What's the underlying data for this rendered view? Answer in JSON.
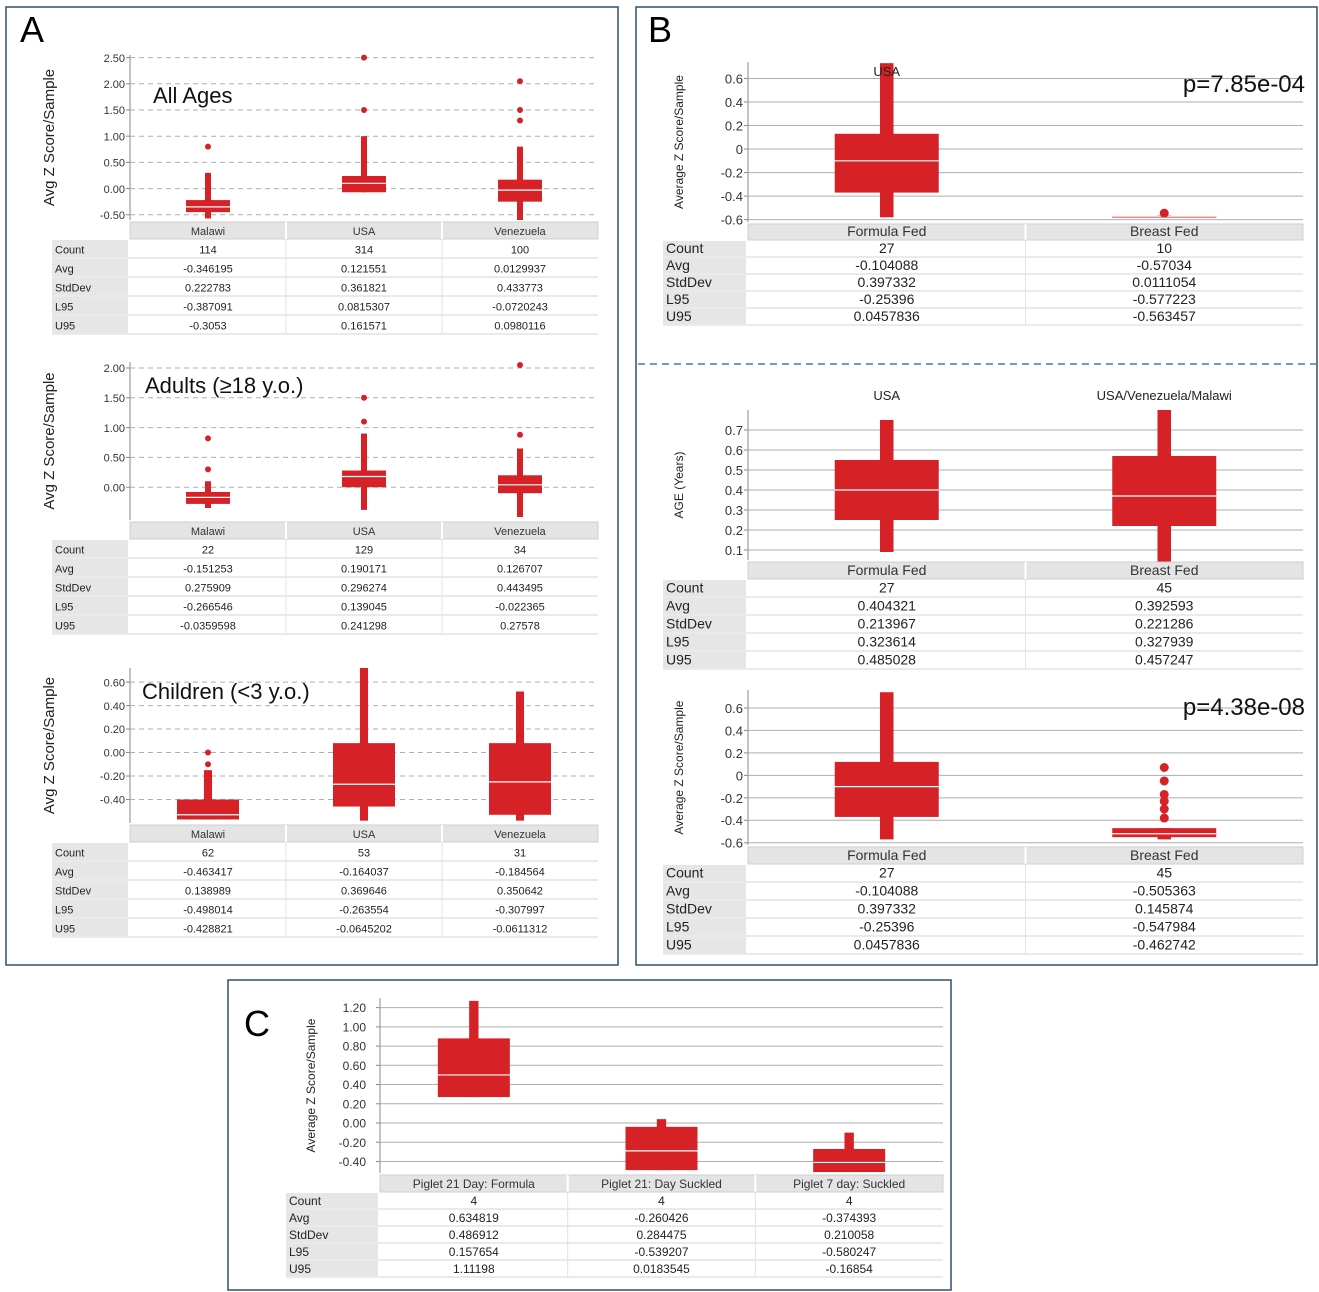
{
  "colors": {
    "box": "#d62126",
    "frame": "#30506e",
    "grid": "#aeaeae",
    "header": "#e4e4e4",
    "divider": "#4a78b0"
  },
  "chart_data": [
    {
      "id": "A1",
      "panel": "A",
      "type": "box",
      "ylabel": "Avg Z Score/Sample",
      "subtitle": "All Ages",
      "yticks": [
        "2.50",
        "2.00",
        "1.50",
        "1.00",
        "0.50",
        "0.00",
        "-0.50"
      ],
      "ylim": [
        -0.6,
        2.55
      ],
      "grid": "dashed",
      "categories": [
        "Malawi",
        "USA",
        "Venezuela"
      ],
      "boxes": [
        {
          "q1": -0.45,
          "median": -0.35,
          "q3": -0.22,
          "whisker_low": -0.57,
          "whisker_high": 0.3,
          "outliers": [
            0.8
          ]
        },
        {
          "q1": -0.07,
          "median": 0.1,
          "q3": 0.24,
          "whisker_low": -0.07,
          "whisker_high": 1.0,
          "outliers": [
            1.5,
            2.5
          ]
        },
        {
          "q1": -0.25,
          "median": -0.03,
          "q3": 0.17,
          "whisker_low": -0.6,
          "whisker_high": 0.8,
          "outliers": [
            1.3,
            1.5,
            2.05
          ]
        }
      ],
      "stats": {
        "Count": [
          "114",
          "314",
          "100"
        ],
        "Avg": [
          "-0.346195",
          "0.121551",
          "0.0129937"
        ],
        "StdDev": [
          "0.222783",
          "0.361821",
          "0.433773"
        ],
        "L95": [
          "-0.387091",
          "0.0815307",
          "-0.0720243"
        ],
        "U95": [
          "-0.3053",
          "0.161571",
          "0.0980116"
        ]
      }
    },
    {
      "id": "A2",
      "panel": "A",
      "type": "box",
      "ylabel": "Avg Z Score/Sample",
      "subtitle": "Adults (≥18 y.o.)",
      "yticks": [
        "2.00",
        "1.50",
        "1.00",
        "0.50",
        "0.00"
      ],
      "ylim": [
        -0.55,
        2.1
      ],
      "grid": "dashed",
      "categories": [
        "Malawi",
        "USA",
        "Venezuela"
      ],
      "boxes": [
        {
          "q1": -0.28,
          "median": -0.17,
          "q3": -0.08,
          "whisker_low": -0.35,
          "whisker_high": 0.1,
          "outliers": [
            0.3,
            0.82
          ]
        },
        {
          "q1": 0.0,
          "median": 0.18,
          "q3": 0.28,
          "whisker_low": -0.38,
          "whisker_high": 0.9,
          "outliers": [
            1.1,
            1.5
          ]
        },
        {
          "q1": -0.1,
          "median": 0.04,
          "q3": 0.2,
          "whisker_low": -0.5,
          "whisker_high": 0.65,
          "outliers": [
            0.88,
            2.05
          ]
        }
      ],
      "stats": {
        "Count": [
          "22",
          "129",
          "34"
        ],
        "Avg": [
          "-0.151253",
          "0.190171",
          "0.126707"
        ],
        "StdDev": [
          "0.275909",
          "0.296274",
          "0.443495"
        ],
        "L95": [
          "-0.266546",
          "0.139045",
          "-0.022365"
        ],
        "U95": [
          "-0.0359598",
          "0.241298",
          "0.27578"
        ]
      }
    },
    {
      "id": "A3",
      "panel": "A",
      "type": "box",
      "ylabel": "Avg Z Score/Sample",
      "subtitle": "Children (<3 y.o.)",
      "yticks": [
        "0.60",
        "0.40",
        "0.20",
        "0.00",
        "-0.20",
        "-0.40"
      ],
      "ylim": [
        -0.6,
        0.72
      ],
      "grid": "dashed",
      "categories": [
        "Malawi",
        "USA",
        "Venezuela"
      ],
      "boxes": [
        {
          "q1": -0.57,
          "median": -0.53,
          "q3": -0.4,
          "whisker_low": -0.57,
          "whisker_high": -0.15,
          "outliers": [
            -0.1,
            0.0
          ]
        },
        {
          "q1": -0.46,
          "median": -0.27,
          "q3": 0.08,
          "whisker_low": -0.58,
          "whisker_high": 0.72,
          "outliers": []
        },
        {
          "q1": -0.53,
          "median": -0.25,
          "q3": 0.08,
          "whisker_low": -0.58,
          "whisker_high": 0.52,
          "outliers": []
        }
      ],
      "stats": {
        "Count": [
          "62",
          "53",
          "31"
        ],
        "Avg": [
          "-0.463417",
          "-0.164037",
          "-0.184564"
        ],
        "StdDev": [
          "0.138989",
          "0.369646",
          "0.350642"
        ],
        "L95": [
          "-0.498014",
          "-0.263554",
          "-0.307997"
        ],
        "U95": [
          "-0.428821",
          "-0.0645202",
          "-0.0611312"
        ]
      }
    },
    {
      "id": "B1",
      "panel": "B",
      "type": "box",
      "ylabel": "Average Z Score/Sample",
      "col_titles": [
        "USA",
        ""
      ],
      "pvalue": "p=7.85e-04",
      "yticks": [
        "0.6",
        "0.4",
        "0.2",
        "0",
        "-0.2",
        "-0.4",
        "-0.6"
      ],
      "ylim": [
        -0.62,
        0.74
      ],
      "grid": "solid",
      "categories": [
        "Formula Fed",
        "Breast Fed"
      ],
      "boxes": [
        {
          "q1": -0.37,
          "median": -0.1,
          "q3": 0.13,
          "whisker_low": -0.58,
          "whisker_high": 0.73,
          "outliers": []
        },
        {
          "q1": -0.575,
          "median": -0.57,
          "q3": -0.565,
          "whisker_low": -0.578,
          "whisker_high": -0.562,
          "outliers": [
            -0.545
          ]
        }
      ],
      "stats": {
        "Count": [
          "27",
          "10"
        ],
        "Avg": [
          "-0.104088",
          "-0.57034"
        ],
        "StdDev": [
          "0.397332",
          "0.0111054"
        ],
        "L95": [
          "-0.25396",
          "-0.577223"
        ],
        "U95": [
          "0.0457836",
          "-0.563457"
        ]
      }
    },
    {
      "id": "B2",
      "panel": "B",
      "type": "box",
      "ylabel": "AGE  (Years)",
      "col_titles": [
        "USA",
        "USA/Venezuela/Malawi"
      ],
      "yticks": [
        "0.7",
        "0.6",
        "0.5",
        "0.4",
        "0.3",
        "0.2",
        "0.1"
      ],
      "ylim": [
        0.05,
        0.8
      ],
      "grid": "solid",
      "categories": [
        "Formula Fed",
        "Breast Fed"
      ],
      "boxes": [
        {
          "q1": 0.25,
          "median": 0.4,
          "q3": 0.55,
          "whisker_low": 0.09,
          "whisker_high": 0.75,
          "outliers": []
        },
        {
          "q1": 0.22,
          "median": 0.37,
          "q3": 0.57,
          "whisker_low": 0.04,
          "whisker_high": 0.8,
          "outliers": []
        }
      ],
      "stats": {
        "Count": [
          "27",
          "45"
        ],
        "Avg": [
          "0.404321",
          "0.392593"
        ],
        "StdDev": [
          "0.213967",
          "0.221286"
        ],
        "L95": [
          "0.323614",
          "0.327939"
        ],
        "U95": [
          "0.485028",
          "0.457247"
        ]
      }
    },
    {
      "id": "B3",
      "panel": "B",
      "type": "box",
      "ylabel": "Average Z Score/Sample",
      "pvalue": "p=4.38e-08",
      "yticks": [
        "0.6",
        "0.4",
        "0.2",
        "0",
        "-0.2",
        "-0.4",
        "-0.6"
      ],
      "ylim": [
        -0.62,
        0.76
      ],
      "grid": "solid",
      "categories": [
        "Formula Fed",
        "Breast Fed"
      ],
      "boxes": [
        {
          "q1": -0.37,
          "median": -0.1,
          "q3": 0.12,
          "whisker_low": -0.57,
          "whisker_high": 0.74,
          "outliers": []
        },
        {
          "q1": -0.55,
          "median": -0.52,
          "q3": -0.47,
          "whisker_low": -0.57,
          "whisker_high": -0.47,
          "outliers": [
            -0.38,
            -0.3,
            -0.23,
            -0.17,
            -0.05,
            0.07
          ]
        }
      ],
      "stats": {
        "Count": [
          "27",
          "45"
        ],
        "Avg": [
          "-0.104088",
          "-0.505363"
        ],
        "StdDev": [
          "0.397332",
          "0.145874"
        ],
        "L95": [
          "-0.25396",
          "-0.547984"
        ],
        "U95": [
          "0.0457836",
          "-0.462742"
        ]
      }
    },
    {
      "id": "C1",
      "panel": "C",
      "type": "box",
      "ylabel": "Average Z Score/Sample",
      "yticks": [
        "1.20",
        "1.00",
        "0.80",
        "0.60",
        "0.40",
        "0.20",
        "0.00",
        "-0.20",
        "-0.40"
      ],
      "ylim": [
        -0.52,
        1.3
      ],
      "grid": "solid",
      "categories": [
        "Piglet 21 Day: Formula",
        "Piglet 21: Day Suckled",
        "Piglet 7 day: Suckled"
      ],
      "boxes": [
        {
          "q1": 0.27,
          "median": 0.5,
          "q3": 0.88,
          "whisker_low": 0.27,
          "whisker_high": 1.27,
          "outliers": []
        },
        {
          "q1": -0.49,
          "median": -0.29,
          "q3": -0.04,
          "whisker_low": -0.49,
          "whisker_high": 0.04,
          "outliers": []
        },
        {
          "q1": -0.51,
          "median": -0.41,
          "q3": -0.27,
          "whisker_low": -0.51,
          "whisker_high": -0.1,
          "outliers": []
        }
      ],
      "stats": {
        "Count": [
          "4",
          "4",
          "4"
        ],
        "Avg": [
          "0.634819",
          "-0.260426",
          "-0.374393"
        ],
        "StdDev": [
          "0.486912",
          "0.284475",
          "0.210058"
        ],
        "L95": [
          "0.157654",
          "-0.539207",
          "-0.580247"
        ],
        "U95": [
          "1.11198",
          "0.0183545",
          "-0.16854"
        ]
      }
    }
  ],
  "panel_letters": {
    "A": "A",
    "B": "B",
    "C": "C"
  },
  "stat_rows": [
    "Count",
    "Avg",
    "StdDev",
    "L95",
    "U95"
  ]
}
